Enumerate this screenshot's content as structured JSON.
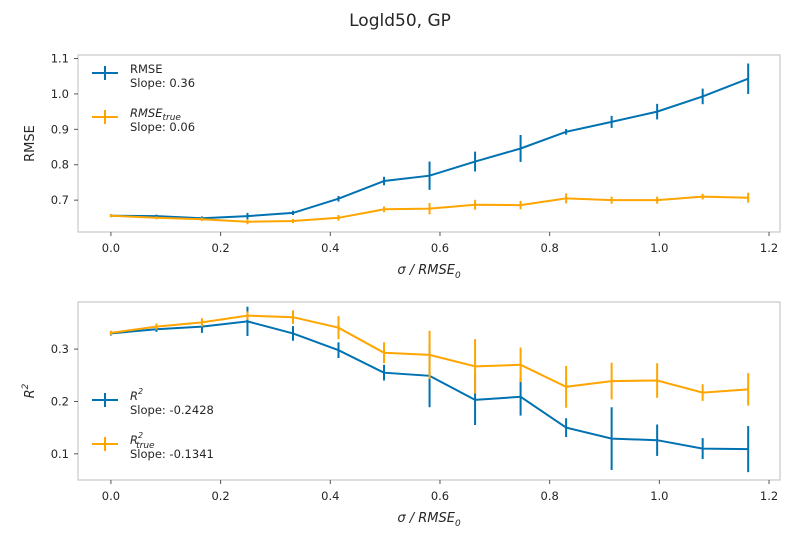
{
  "figure": {
    "title": "Logld50, GP"
  },
  "colors": {
    "blue": "#0072B2",
    "orange": "#FFA500"
  },
  "chart_data": [
    {
      "type": "line",
      "title": "",
      "xlabel_base": "σ / RMSE",
      "xlabel_sub": "0",
      "ylabel": "RMSE",
      "xlim": [
        -0.06,
        1.22
      ],
      "ylim": [
        0.61,
        1.11
      ],
      "xticks": [
        0.0,
        0.2,
        0.4,
        0.6,
        0.8,
        1.0,
        1.2
      ],
      "xtick_labels": [
        "0.0",
        "0.2",
        "0.4",
        "0.6",
        "0.8",
        "1.0",
        "1.2"
      ],
      "yticks": [
        0.7,
        0.8,
        0.9,
        1.0,
        1.1
      ],
      "ytick_labels": [
        "0.7",
        "0.8",
        "0.9",
        "1.0",
        "1.1"
      ],
      "legend_position": "top-left",
      "x": [
        0.0,
        0.083,
        0.166,
        0.249,
        0.332,
        0.415,
        0.498,
        0.581,
        0.664,
        0.747,
        0.83,
        0.913,
        0.996,
        1.079,
        1.162
      ],
      "series": [
        {
          "name": "RMSE",
          "name_sub": "",
          "slope_label": "Slope: 0.36",
          "color": "blue",
          "values": [
            0.656,
            0.655,
            0.649,
            0.655,
            0.664,
            0.704,
            0.754,
            0.769,
            0.809,
            0.846,
            0.893,
            0.921,
            0.95,
            0.993,
            1.043
          ],
          "errors": [
            0.004,
            0.004,
            0.005,
            0.009,
            0.006,
            0.008,
            0.012,
            0.04,
            0.028,
            0.038,
            0.008,
            0.017,
            0.022,
            0.022,
            0.043
          ]
        },
        {
          "name": "RMSE",
          "name_sub": "true",
          "slope_label": "Slope: 0.06",
          "color": "orange",
          "values": [
            0.656,
            0.65,
            0.646,
            0.639,
            0.641,
            0.65,
            0.674,
            0.676,
            0.687,
            0.686,
            0.705,
            0.7,
            0.7,
            0.71,
            0.707
          ],
          "errors": [
            0.004,
            0.004,
            0.005,
            0.007,
            0.006,
            0.008,
            0.008,
            0.016,
            0.014,
            0.012,
            0.014,
            0.01,
            0.01,
            0.008,
            0.014
          ]
        }
      ]
    },
    {
      "type": "line",
      "title": "",
      "xlabel_base": "σ / RMSE",
      "xlabel_sub": "0",
      "ylabel": "R",
      "ylabel_sup": "2",
      "xlim": [
        -0.06,
        1.22
      ],
      "ylim": [
        0.05,
        0.39
      ],
      "xticks": [
        0.0,
        0.2,
        0.4,
        0.6,
        0.8,
        1.0,
        1.2
      ],
      "xtick_labels": [
        "0.0",
        "0.2",
        "0.4",
        "0.6",
        "0.8",
        "1.0",
        "1.2"
      ],
      "yticks": [
        0.1,
        0.2,
        0.3
      ],
      "ytick_labels": [
        "0.1",
        "0.2",
        "0.3"
      ],
      "legend_position": "lower-left",
      "x": [
        0.0,
        0.083,
        0.166,
        0.249,
        0.332,
        0.415,
        0.498,
        0.581,
        0.664,
        0.747,
        0.83,
        0.913,
        0.996,
        1.079,
        1.162
      ],
      "series": [
        {
          "name": "R",
          "name_sup": "2",
          "name_sub": "",
          "slope_label": "Slope: -0.2428",
          "color": "blue",
          "values": [
            0.33,
            0.338,
            0.343,
            0.353,
            0.33,
            0.298,
            0.255,
            0.249,
            0.203,
            0.209,
            0.15,
            0.129,
            0.126,
            0.11,
            0.109
          ],
          "errors": [
            0.004,
            0.005,
            0.012,
            0.028,
            0.014,
            0.015,
            0.015,
            0.06,
            0.048,
            0.036,
            0.018,
            0.06,
            0.03,
            0.02,
            0.044
          ]
        },
        {
          "name": "R",
          "name_sup": "2",
          "name_sub": "true",
          "slope_label": "Slope: -0.1341",
          "color": "orange",
          "values": [
            0.331,
            0.343,
            0.351,
            0.364,
            0.361,
            0.341,
            0.293,
            0.289,
            0.267,
            0.27,
            0.228,
            0.239,
            0.24,
            0.217,
            0.223
          ],
          "errors": [
            0.004,
            0.006,
            0.008,
            0.008,
            0.013,
            0.022,
            0.02,
            0.046,
            0.052,
            0.033,
            0.04,
            0.035,
            0.033,
            0.016,
            0.031
          ]
        }
      ]
    }
  ]
}
